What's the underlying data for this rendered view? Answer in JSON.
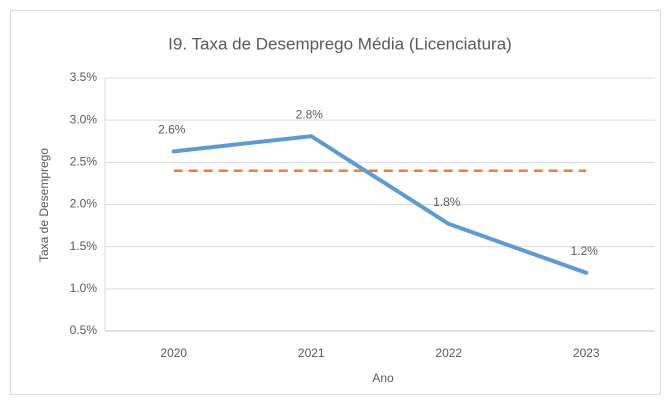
{
  "chart_data": {
    "type": "line",
    "title": "I9. Taxa de Desemprego Média (Licenciatura)",
    "x_label": "Ano",
    "y_label": "Taxa de Desemprego",
    "categories": [
      "2020",
      "2021",
      "2022",
      "2023"
    ],
    "series": [
      {
        "color": "#5b9bd5",
        "values": [
          2.63,
          2.81,
          1.77,
          1.19
        ],
        "value_labels": [
          "2.6%",
          "2.8%",
          "1.8%",
          "1.2%"
        ]
      },
      {
        "color": "#ed7d31",
        "dashed": true,
        "values": [
          2.4,
          2.4,
          2.4,
          2.4
        ]
      }
    ],
    "ylim": [
      0.5,
      3.5
    ],
    "yticks": [
      {
        "value": 0.5,
        "label": "0.5%"
      },
      {
        "value": 1.0,
        "label": "1.0%"
      },
      {
        "value": 1.5,
        "label": "1.5%"
      },
      {
        "value": 2.0,
        "label": "2.0%"
      },
      {
        "value": 2.5,
        "label": "2.5%"
      },
      {
        "value": 3.0,
        "label": "3.0%"
      },
      {
        "value": 3.5,
        "label": "3.5%"
      }
    ],
    "grid": true
  }
}
